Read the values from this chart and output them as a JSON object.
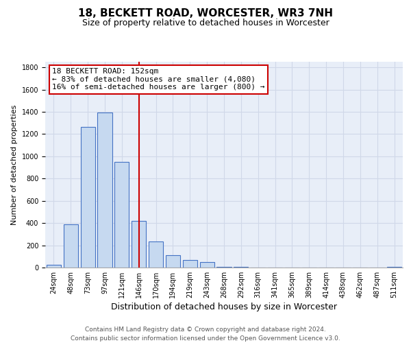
{
  "title": "18, BECKETT ROAD, WORCESTER, WR3 7NH",
  "subtitle": "Size of property relative to detached houses in Worcester",
  "xlabel": "Distribution of detached houses by size in Worcester",
  "ylabel": "Number of detached properties",
  "bar_labels": [
    "24sqm",
    "48sqm",
    "73sqm",
    "97sqm",
    "121sqm",
    "146sqm",
    "170sqm",
    "194sqm",
    "219sqm",
    "243sqm",
    "268sqm",
    "292sqm",
    "316sqm",
    "341sqm",
    "365sqm",
    "389sqm",
    "414sqm",
    "438sqm",
    "462sqm",
    "487sqm",
    "511sqm"
  ],
  "bar_values": [
    25,
    390,
    1265,
    1395,
    950,
    420,
    235,
    110,
    70,
    50,
    5,
    5,
    0,
    0,
    0,
    0,
    0,
    0,
    0,
    0,
    5
  ],
  "bar_color": "#c6d9f0",
  "bar_edge_color": "#4472c4",
  "ylim": [
    0,
    1850
  ],
  "yticks": [
    0,
    200,
    400,
    600,
    800,
    1000,
    1200,
    1400,
    1600,
    1800
  ],
  "grid_color": "#d0d8e8",
  "background_color": "#e8eef8",
  "property_line_x": 5.0,
  "property_label": "18 BECKETT ROAD: 152sqm",
  "annotation_line1": "← 83% of detached houses are smaller (4,080)",
  "annotation_line2": "16% of semi-detached houses are larger (800) →",
  "box_color": "white",
  "box_edge_color": "#cc0000",
  "property_line_color": "#cc0000",
  "footer_line1": "Contains HM Land Registry data © Crown copyright and database right 2024.",
  "footer_line2": "Contains public sector information licensed under the Open Government Licence v3.0.",
  "title_fontsize": 11,
  "subtitle_fontsize": 9,
  "xlabel_fontsize": 9,
  "ylabel_fontsize": 8,
  "tick_fontsize": 7,
  "footer_fontsize": 6.5,
  "annotation_fontsize": 8
}
